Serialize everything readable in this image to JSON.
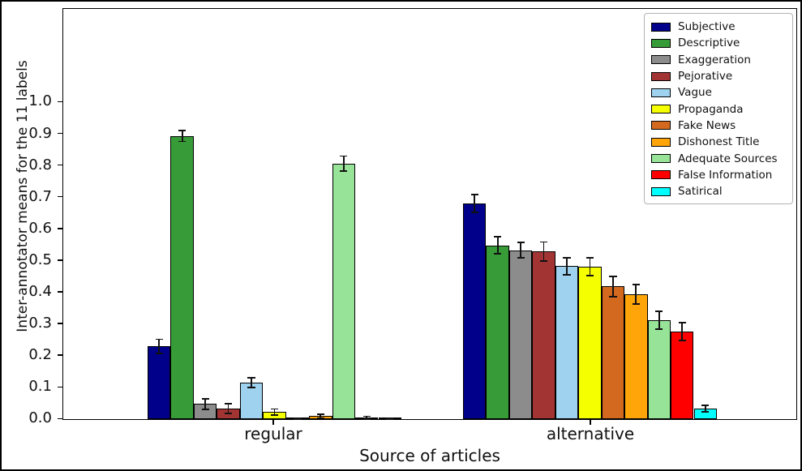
{
  "chart_data": {
    "type": "bar",
    "title": "",
    "xlabel": "Source of articles",
    "ylabel": "Inter-annotator means for the 11 labels",
    "categories": [
      "regular",
      "alternative"
    ],
    "ytick_labels": [
      "0.0",
      "0.1",
      "0.2",
      "0.3",
      "0.4",
      "0.5",
      "0.6",
      "0.7",
      "0.8",
      "0.9",
      "1.0"
    ],
    "ylim": [
      0.0,
      1.3
    ],
    "grid": false,
    "legend_position": "upper right",
    "error_bars": true,
    "series": [
      {
        "name": "Subjective",
        "color": "#00008b",
        "values": [
          0.23,
          0.68
        ],
        "errors": [
          0.022,
          0.028
        ]
      },
      {
        "name": "Descriptive",
        "color": "#379b37",
        "values": [
          0.893,
          0.548
        ],
        "errors": [
          0.017,
          0.027
        ]
      },
      {
        "name": "Exaggeration",
        "color": "#8c8c8c",
        "values": [
          0.048,
          0.533
        ],
        "errors": [
          0.017,
          0.025
        ]
      },
      {
        "name": "Pejorative",
        "color": "#a33434",
        "values": [
          0.033,
          0.529
        ],
        "errors": [
          0.015,
          0.03
        ]
      },
      {
        "name": "Vague",
        "color": "#9ed2ee",
        "values": [
          0.115,
          0.483
        ],
        "errors": [
          0.015,
          0.027
        ]
      },
      {
        "name": "Propaganda",
        "color": "#f6ff00",
        "values": [
          0.022,
          0.481
        ],
        "errors": [
          0.01,
          0.028
        ]
      },
      {
        "name": "Fake News",
        "color": "#d2691e",
        "values": [
          0.002,
          0.419
        ],
        "errors": [
          0.002,
          0.032
        ]
      },
      {
        "name": "Dishonest Title",
        "color": "#ffa50a",
        "values": [
          0.01,
          0.394
        ],
        "errors": [
          0.006,
          0.03
        ]
      },
      {
        "name": "Adequate Sources",
        "color": "#97e397",
        "values": [
          0.806,
          0.312
        ],
        "errors": [
          0.024,
          0.028
        ]
      },
      {
        "name": "False Information",
        "color": "#ff0000",
        "values": [
          0.005,
          0.277
        ],
        "errors": [
          0.004,
          0.028
        ]
      },
      {
        "name": "Satirical",
        "color": "#00ffff",
        "values": [
          0.001,
          0.033
        ],
        "errors": [
          0.001,
          0.01
        ]
      }
    ]
  }
}
